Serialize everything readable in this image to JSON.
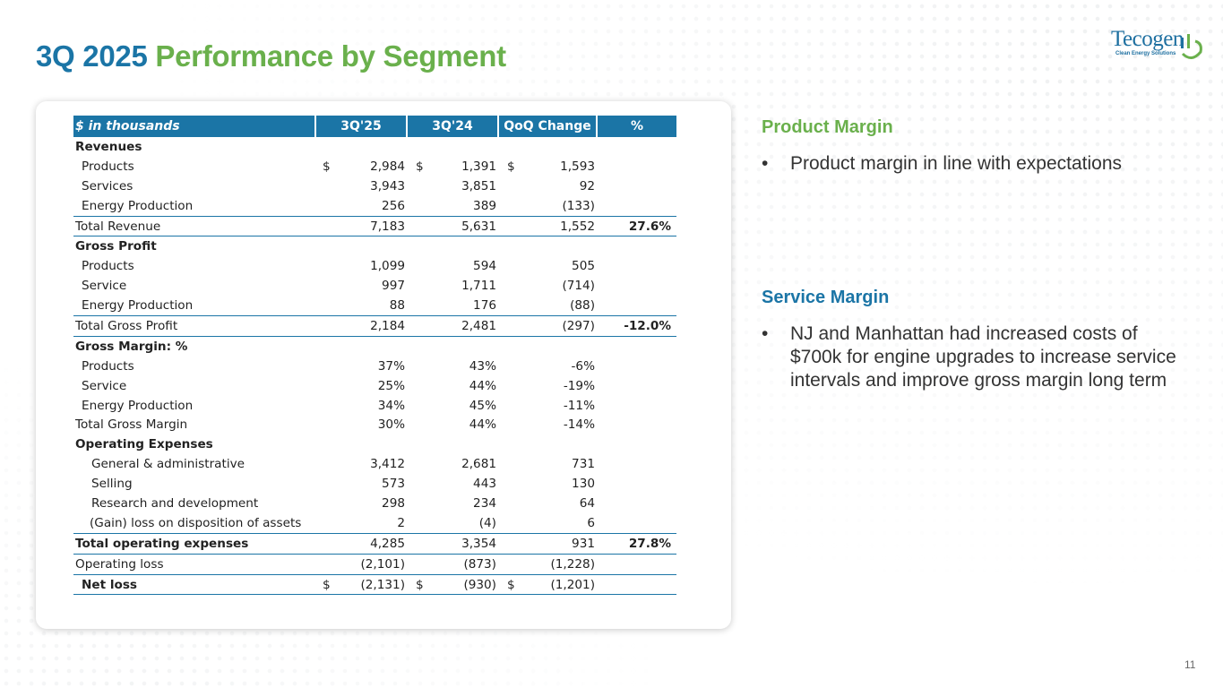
{
  "title": {
    "part1": "3Q 2025",
    "part2": "Performance by Segment"
  },
  "logo": {
    "brand": "Tecogen",
    "tagline": "Clean Energy Solutions"
  },
  "table": {
    "headers": [
      "$ in thousands",
      "3Q'25",
      "3Q'24",
      "QoQ Change",
      "%"
    ],
    "currency_symbol": "$",
    "rows": {
      "revenues": {
        "label": "Revenues"
      },
      "rev_products": {
        "label": "Products",
        "v1": "2,984",
        "v2": "1,391",
        "v3": "1,593"
      },
      "rev_services": {
        "label": "Services",
        "v1": "3,943",
        "v2": "3,851",
        "v3": "92"
      },
      "rev_energy": {
        "label": "Energy Production",
        "v1": "256",
        "v2": "389",
        "v3": "(133)"
      },
      "total_revenue": {
        "label": "Total Revenue",
        "v1": "7,183",
        "v2": "5,631",
        "v3": "1,552",
        "pct": "27.6%"
      },
      "gross_profit": {
        "label": "Gross Profit"
      },
      "gp_products": {
        "label": "Products",
        "v1": "1,099",
        "v2": "594",
        "v3": "505"
      },
      "gp_service": {
        "label": "Service",
        "v1": "997",
        "v2": "1,711",
        "v3": "(714)"
      },
      "gp_energy": {
        "label": "Energy Production",
        "v1": "88",
        "v2": "176",
        "v3": "(88)"
      },
      "total_gp": {
        "label": "Total Gross Profit",
        "v1": "2,184",
        "v2": "2,481",
        "v3": "(297)",
        "pct": "-12.0%"
      },
      "gross_margin": {
        "label": "Gross Margin: %"
      },
      "gm_products": {
        "label": "Products",
        "v1": "37%",
        "v2": "43%",
        "v3": "-6%"
      },
      "gm_service": {
        "label": "Service",
        "v1": "25%",
        "v2": "44%",
        "v3": "-19%"
      },
      "gm_energy": {
        "label": "Energy Production",
        "v1": "34%",
        "v2": "45%",
        "v3": "-11%"
      },
      "total_gm": {
        "label": "Total Gross Margin",
        "v1": "30%",
        "v2": "44%",
        "v3": "-14%"
      },
      "opex": {
        "label": "Operating Expenses"
      },
      "opex_ga": {
        "label": "General & administrative",
        "v1": "3,412",
        "v2": "2,681",
        "v3": "731"
      },
      "opex_selling": {
        "label": "Selling",
        "v1": "573",
        "v2": "443",
        "v3": "130"
      },
      "opex_rd": {
        "label": "Research and development",
        "v1": "298",
        "v2": "234",
        "v3": "64"
      },
      "opex_gain": {
        "label": "(Gain) loss on disposition of assets",
        "v1": "2",
        "v2": "(4)",
        "v3": "6"
      },
      "total_opex": {
        "label": "Total operating expenses",
        "v1": "4,285",
        "v2": "3,354",
        "v3": "931",
        "pct": "27.8%"
      },
      "op_loss": {
        "label": "Operating loss",
        "v1": "(2,101)",
        "v2": "(873)",
        "v3": "(1,228)"
      },
      "net_loss": {
        "label": "Net loss",
        "v1": "(2,131)",
        "v2": "(930)",
        "v3": "(1,201)"
      }
    }
  },
  "product_margin": {
    "heading": "Product Margin",
    "bullets": [
      "Product margin in line with expectations"
    ]
  },
  "service_margin": {
    "heading": "Service Margin",
    "bullets": [
      "NJ and Manhattan had increased costs of $700k for engine upgrades to increase service intervals and improve gross margin long term"
    ]
  },
  "bullet_char": "•",
  "page_number": "11",
  "colors": {
    "blue": "#1b75a6",
    "green": "#6ab04c"
  }
}
